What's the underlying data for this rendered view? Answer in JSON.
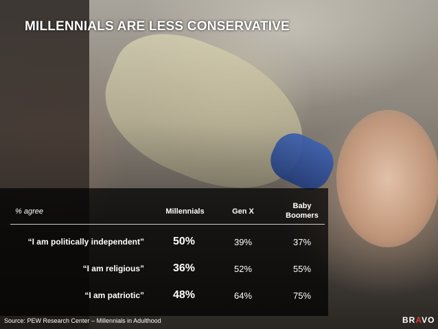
{
  "title": "MILLENNIALS ARE LESS CONSERVATIVE",
  "table": {
    "header_agree": "% agree",
    "columns": [
      "Millennials",
      "Gen X",
      "Baby Boomers"
    ],
    "rows": [
      {
        "label": "“I am politically independent”",
        "values": [
          "50%",
          "39%",
          "37%"
        ]
      },
      {
        "label": "“I am religious”",
        "values": [
          "36%",
          "52%",
          "55%"
        ]
      },
      {
        "label": "“I am patriotic”",
        "values": [
          "48%",
          "64%",
          "75%"
        ]
      }
    ]
  },
  "chart_data": {
    "type": "table",
    "title": "MILLENNIALS ARE LESS CONSERVATIVE",
    "categories": [
      "“I am politically independent”",
      "“I am religious”",
      "“I am patriotic”"
    ],
    "series": [
      {
        "name": "Millennials",
        "values": [
          50,
          36,
          48
        ]
      },
      {
        "name": "Gen X",
        "values": [
          39,
          52,
          64
        ]
      },
      {
        "name": "Baby Boomers",
        "values": [
          37,
          55,
          75
        ]
      }
    ],
    "unit": "% agree"
  },
  "source": "Source: PEW Research Center – Millennials in Adulthood",
  "brand": {
    "part1": "BR",
    "accent": "A",
    "part2": "VO"
  },
  "colors": {
    "accent": "#e23b2e",
    "text": "#ffffff"
  }
}
